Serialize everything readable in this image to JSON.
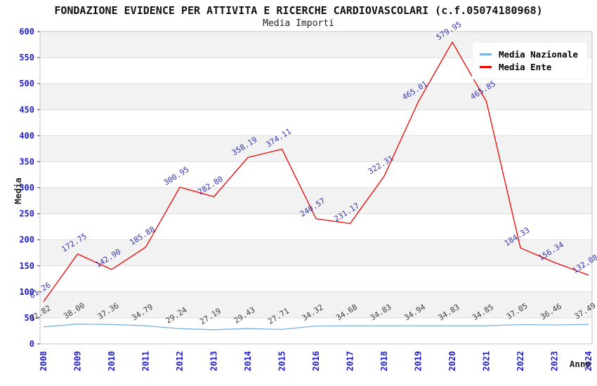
{
  "header": {
    "title": "FONDAZIONE EVIDENCE PER ATTIVITA E RICERCHE CARDIOVASCOLARI (c.f.05074180968)",
    "subtitle": "Media Importi"
  },
  "legend": {
    "items": [
      {
        "label": "Media Nazionale",
        "color": "#79b2e2"
      },
      {
        "label": "Media Ente",
        "color": "#ee0000"
      }
    ]
  },
  "chart_data": {
    "type": "line",
    "title": "FONDAZIONE EVIDENCE PER ATTIVITA E RICERCHE CARDIOVASCOLARI (c.f.05074180968)",
    "subtitle": "Media Importi",
    "xlabel": "Anno",
    "ylabel": "Media",
    "categories": [
      "2008",
      "2009",
      "2010",
      "2011",
      "2012",
      "2013",
      "2014",
      "2015",
      "2016",
      "2017",
      "2018",
      "2019",
      "2020",
      "2021",
      "2022",
      "2023",
      "2024"
    ],
    "series": [
      {
        "name": "Media Nazionale",
        "color": "#79b2e2",
        "label_color": "#3d3d3d",
        "values": [
          32.82,
          38.0,
          37.36,
          34.79,
          29.24,
          27.19,
          29.43,
          27.71,
          34.32,
          34.68,
          34.83,
          34.94,
          34.83,
          34.85,
          37.05,
          36.46,
          37.49
        ],
        "labels": [
          "32.82",
          "38.00",
          "37.36",
          "34.79",
          "29.24",
          "27.19",
          "29.43",
          "27.71",
          "34.32",
          "34.68",
          "34.83",
          "34.94",
          "34.83",
          "34.85",
          "37.05",
          "36.46",
          "37.49"
        ]
      },
      {
        "name": "Media Ente",
        "color": "#ee0000",
        "label_color": "#3535ad",
        "values": [
          81.26,
          172.75,
          142.9,
          185.88,
          300.95,
          282.8,
          358.19,
          374.11,
          240.57,
          231.17,
          322.31,
          465.01,
          579.95,
          465.85,
          184.33,
          156.34,
          132.08
        ],
        "labels": [
          "81.26",
          "172.75",
          "142.90",
          "185.88",
          "300.95",
          "282.80",
          "358.19",
          "374.11",
          "240.57",
          "231.17",
          "322.31",
          "465.01",
          "579.95",
          "465.85",
          "184.33",
          "156.34",
          "132.08"
        ]
      }
    ],
    "ylim": [
      0,
      600
    ],
    "ytick_step": 50,
    "yticks": [
      "0",
      "50",
      "100",
      "150",
      "200",
      "250",
      "300",
      "350",
      "400",
      "450",
      "500",
      "550",
      "600"
    ],
    "tick_color": "#1c1ccc",
    "band_colors": [
      "#ffffff",
      "#f2f2f2"
    ],
    "gridline_color": "#dedede",
    "axis_border_color": "#c6c6c6",
    "grid": true,
    "legend_position": "top-right",
    "value_labels": true
  }
}
